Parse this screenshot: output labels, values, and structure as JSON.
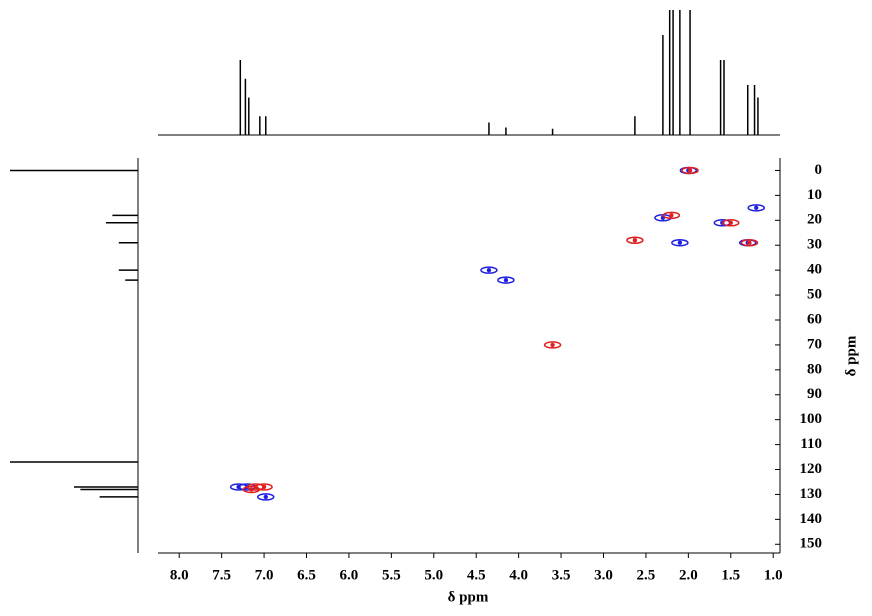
{
  "chart_data": {
    "type": "scatter",
    "xlabel": "δ ppm",
    "ylabel": "δ ppm",
    "xlim": [
      8.25,
      0.92
    ],
    "ylim": [
      -5,
      153.5
    ],
    "xticks": [
      {
        "value": 8,
        "label": "8.0"
      },
      {
        "value": 7.5,
        "label": "7.5"
      },
      {
        "value": 7,
        "label": "7.0"
      },
      {
        "value": 6.5,
        "label": "6.5"
      },
      {
        "value": 6,
        "label": "6.0"
      },
      {
        "value": 5.5,
        "label": "5.5"
      },
      {
        "value": 5,
        "label": "5.0"
      },
      {
        "value": 4.5,
        "label": "4.5"
      },
      {
        "value": 4,
        "label": "4.0"
      },
      {
        "value": 3.5,
        "label": "3.5"
      },
      {
        "value": 3,
        "label": "3.0"
      },
      {
        "value": 2.5,
        "label": "2.5"
      },
      {
        "value": 2,
        "label": "2.0"
      },
      {
        "value": 1.5,
        "label": "1.5"
      },
      {
        "value": 1,
        "label": "1.0"
      }
    ],
    "yticks": [
      0,
      10,
      20,
      30,
      40,
      50,
      60,
      70,
      80,
      90,
      100,
      110,
      120,
      130,
      140,
      150
    ],
    "series": [
      {
        "color": "#2020e0",
        "x": [
          2.0,
          2.3,
          1.6,
          1.2,
          2.1,
          1.3,
          4.35,
          4.15,
          7.3,
          7.2,
          6.98
        ],
        "values": [
          0,
          19,
          21,
          15,
          29,
          29,
          40,
          44,
          127,
          127,
          131
        ]
      },
      {
        "color": "#e02020",
        "x": [
          1.98,
          2.2,
          1.5,
          2.63,
          1.28,
          3.6,
          7.1,
          7.0,
          7.15
        ],
        "values": [
          0,
          18,
          21,
          28,
          29,
          70,
          127,
          127,
          128
        ]
      }
    ],
    "top_spectrum": {
      "x": [
        7.28,
        7.22,
        7.18,
        7.05,
        6.98,
        4.35,
        4.15,
        3.6,
        2.63,
        2.3,
        2.22,
        2.18,
        2.1,
        1.98,
        1.62,
        1.58,
        1.3,
        1.22,
        1.18
      ],
      "values": [
        0.6,
        0.45,
        0.3,
        0.15,
        0.15,
        0.1,
        0.06,
        0.05,
        0.15,
        0.8,
        1.0,
        1.0,
        1.0,
        1.0,
        0.6,
        0.6,
        0.4,
        0.4,
        0.3
      ]
    },
    "left_spectrum": {
      "y": [
        0,
        18,
        21,
        29,
        40,
        44,
        117,
        127,
        128,
        131
      ],
      "values": [
        1.0,
        0.2,
        0.25,
        0.15,
        0.15,
        0.1,
        1.0,
        0.5,
        0.45,
        0.3
      ]
    }
  }
}
